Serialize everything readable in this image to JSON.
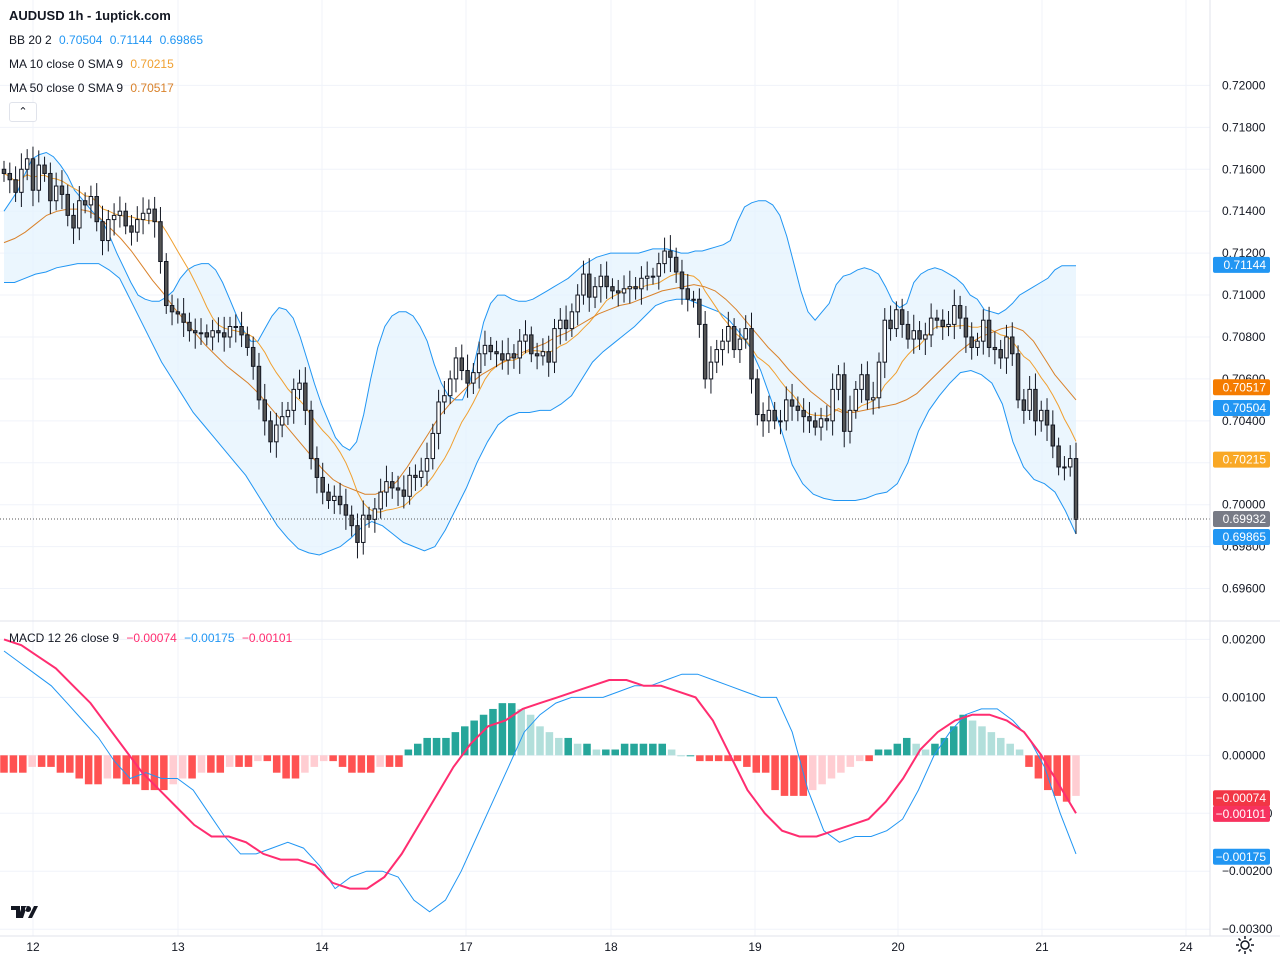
{
  "title": "AUDUSD 1h - 1uptick.com",
  "legends": {
    "bb": {
      "name": "BB 20 2",
      "mid": "0.70504",
      "upper": "0.71144",
      "lower": "0.69865"
    },
    "ma10": {
      "name": "MA 10 close 0 SMA 9",
      "value": "0.70215"
    },
    "ma50": {
      "name": "MA 50 close 0 SMA 9",
      "value": "0.70517"
    },
    "macd": {
      "name": "MACD 12 26 close 9",
      "hist": "−0.00074",
      "macd": "−0.00175",
      "signal": "−0.00101"
    }
  },
  "colors": {
    "bb_line": "#2196f3",
    "bb_fill": "#e3f2fd",
    "ma10": "#f0a030",
    "ma50": "#d9822b",
    "macd_line": "#2196f3",
    "signal_line": "#ff2d70",
    "hist_pos_strong": "#26a69a",
    "hist_pos_weak": "#b2dfdb",
    "hist_neg_strong": "#ff5252",
    "hist_neg_weak": "#ffcdd2",
    "candle_body": "#555555"
  },
  "chart_data": [
    {
      "type": "candlestick",
      "title": "AUDUSD 1h - 1uptick.com",
      "ylim": [
        0.6945,
        0.7225
      ],
      "y_ticks": [
        "0.72000",
        "0.71800",
        "0.71600",
        "0.71400",
        "0.71200",
        "0.71000",
        "0.70800",
        "0.70600",
        "0.70400",
        "0.70200",
        "0.70000",
        "0.69800",
        "0.69600"
      ],
      "x_ticks": [
        "12",
        "13",
        "14",
        "17",
        "18",
        "19",
        "20",
        "21",
        "24"
      ],
      "price_labels": [
        {
          "text": "0.71144",
          "value": 0.71144,
          "kind": "bb"
        },
        {
          "text": "0.70517",
          "value": 0.70517,
          "kind": "ma50"
        },
        {
          "text": "0.70504",
          "value": 0.70504,
          "kind": "bb"
        },
        {
          "text": "0.70215",
          "value": 0.70215,
          "kind": "ma10"
        },
        {
          "text": "0.69932",
          "value": 0.69932,
          "kind": "last"
        },
        {
          "text": "0.69865",
          "value": 0.69865,
          "kind": "bb"
        }
      ],
      "last_price": 0.69932,
      "close": [
        0.7158,
        0.7155,
        0.7149,
        0.716,
        0.7165,
        0.715,
        0.7162,
        0.7158,
        0.7145,
        0.7152,
        0.7148,
        0.7138,
        0.7132,
        0.7145,
        0.7143,
        0.7147,
        0.7135,
        0.7126,
        0.7136,
        0.7138,
        0.714,
        0.7133,
        0.713,
        0.7136,
        0.7139,
        0.7141,
        0.7135,
        0.7116,
        0.7095,
        0.7092,
        0.7091,
        0.7087,
        0.7083,
        0.7082,
        0.7082,
        0.708,
        0.7083,
        0.7082,
        0.708,
        0.7085,
        0.7085,
        0.7081,
        0.7075,
        0.7066,
        0.705,
        0.704,
        0.703,
        0.7038,
        0.7042,
        0.7045,
        0.7055,
        0.7058,
        0.7045,
        0.7022,
        0.7013,
        0.7006,
        0.7002,
        0.7004,
        0.7,
        0.6995,
        0.699,
        0.6982,
        0.6995,
        0.6993,
        0.6998,
        0.7006,
        0.7011,
        0.7008,
        0.7007,
        0.7004,
        0.7014,
        0.7013,
        0.7016,
        0.7022,
        0.7034,
        0.7049,
        0.7052,
        0.706,
        0.707,
        0.7064,
        0.7058,
        0.7063,
        0.7072,
        0.7076,
        0.7073,
        0.7072,
        0.7069,
        0.7072,
        0.707,
        0.7078,
        0.7081,
        0.7072,
        0.7071,
        0.7073,
        0.7068,
        0.7084,
        0.7088,
        0.7084,
        0.7092,
        0.71,
        0.711,
        0.7099,
        0.7104,
        0.7109,
        0.7104,
        0.7102,
        0.7101,
        0.7103,
        0.7104,
        0.7103,
        0.7108,
        0.7109,
        0.7109,
        0.7115,
        0.7121,
        0.7118,
        0.7111,
        0.7103,
        0.7098,
        0.7098,
        0.7086,
        0.706,
        0.7068,
        0.7074,
        0.7078,
        0.7085,
        0.7074,
        0.7079,
        0.7084,
        0.706,
        0.7043,
        0.704,
        0.7045,
        0.704,
        0.704,
        0.705,
        0.7047,
        0.7045,
        0.7042,
        0.704,
        0.7037,
        0.7041,
        0.704,
        0.7055,
        0.7062,
        0.7035,
        0.7045,
        0.7055,
        0.7062,
        0.705,
        0.7051,
        0.7068,
        0.7088,
        0.7084,
        0.7093,
        0.7086,
        0.7079,
        0.7083,
        0.7079,
        0.7081,
        0.7089,
        0.7088,
        0.7085,
        0.7086,
        0.7095,
        0.7089,
        0.708,
        0.7075,
        0.7078,
        0.7088,
        0.7075,
        0.7074,
        0.707,
        0.708,
        0.7072,
        0.705,
        0.7045,
        0.7055,
        0.704,
        0.7045,
        0.7038,
        0.7028,
        0.7018,
        0.7018,
        0.7022,
        0.6993
      ],
      "open": [
        0.716,
        0.7158,
        0.7155,
        0.7149,
        0.716,
        0.7165,
        0.715,
        0.7162,
        0.7158,
        0.7145,
        0.7152,
        0.7148,
        0.7138,
        0.7132,
        0.7145,
        0.7143,
        0.7147,
        0.7135,
        0.7126,
        0.7136,
        0.7138,
        0.714,
        0.7133,
        0.713,
        0.7136,
        0.7139,
        0.7141,
        0.7135,
        0.7116,
        0.7095,
        0.7092,
        0.7091,
        0.7087,
        0.7083,
        0.7082,
        0.7082,
        0.708,
        0.7083,
        0.7082,
        0.708,
        0.7085,
        0.7085,
        0.7081,
        0.7075,
        0.7066,
        0.705,
        0.704,
        0.703,
        0.7038,
        0.7042,
        0.7045,
        0.7055,
        0.7058,
        0.7045,
        0.7022,
        0.7013,
        0.7006,
        0.7002,
        0.7004,
        0.7,
        0.6995,
        0.699,
        0.6982,
        0.6995,
        0.6993,
        0.6998,
        0.7006,
        0.7011,
        0.7008,
        0.7007,
        0.7004,
        0.7014,
        0.7013,
        0.7016,
        0.7022,
        0.7034,
        0.7049,
        0.7052,
        0.706,
        0.707,
        0.7064,
        0.7058,
        0.7063,
        0.7072,
        0.7076,
        0.7073,
        0.7072,
        0.7069,
        0.7072,
        0.707,
        0.7078,
        0.7081,
        0.7072,
        0.7071,
        0.7073,
        0.7068,
        0.7084,
        0.7088,
        0.7084,
        0.7092,
        0.71,
        0.711,
        0.7099,
        0.7104,
        0.7109,
        0.7104,
        0.7102,
        0.7101,
        0.7103,
        0.7104,
        0.7103,
        0.7108,
        0.7109,
        0.7109,
        0.7115,
        0.7121,
        0.7118,
        0.7111,
        0.7103,
        0.7098,
        0.7098,
        0.7086,
        0.706,
        0.7068,
        0.7074,
        0.7078,
        0.7085,
        0.7074,
        0.7079,
        0.7084,
        0.706,
        0.7043,
        0.704,
        0.7045,
        0.704,
        0.704,
        0.705,
        0.7047,
        0.7045,
        0.7042,
        0.704,
        0.7037,
        0.7041,
        0.704,
        0.7055,
        0.7062,
        0.7035,
        0.7045,
        0.7055,
        0.7062,
        0.705,
        0.7051,
        0.7068,
        0.7088,
        0.7084,
        0.7093,
        0.7086,
        0.7079,
        0.7083,
        0.7079,
        0.7081,
        0.7089,
        0.7088,
        0.7085,
        0.7086,
        0.7095,
        0.7089,
        0.708,
        0.7075,
        0.7078,
        0.7088,
        0.7075,
        0.7074,
        0.707,
        0.708,
        0.7072,
        0.705,
        0.7045,
        0.7055,
        0.704,
        0.7045,
        0.7038,
        0.7028,
        0.7018,
        0.7018,
        0.7022
      ],
      "bb_upper": [
        0.714,
        0.7145,
        0.715,
        0.7158,
        0.7165,
        0.7167,
        0.7168,
        0.7166,
        0.7162,
        0.7157,
        0.715,
        0.7146,
        0.7142,
        0.7138,
        0.7135,
        0.7128,
        0.712,
        0.7113,
        0.7106,
        0.71,
        0.7098,
        0.7097,
        0.7097,
        0.7099,
        0.7102,
        0.7108,
        0.7112,
        0.7114,
        0.7115,
        0.7115,
        0.7112,
        0.7106,
        0.7098,
        0.709,
        0.7083,
        0.7078,
        0.7078,
        0.7084,
        0.709,
        0.7094,
        0.7093,
        0.7089,
        0.708,
        0.7069,
        0.7058,
        0.7048,
        0.704,
        0.7032,
        0.7028,
        0.7026,
        0.703,
        0.7043,
        0.706,
        0.7075,
        0.7085,
        0.709,
        0.7092,
        0.7092,
        0.709,
        0.7085,
        0.7078,
        0.7067,
        0.7058,
        0.7052,
        0.705,
        0.705,
        0.7058,
        0.7072,
        0.7087,
        0.7096,
        0.71,
        0.71,
        0.7098,
        0.7097,
        0.7097,
        0.7098,
        0.71,
        0.7102,
        0.7104,
        0.7106,
        0.7108,
        0.7111,
        0.7114,
        0.7116,
        0.7118,
        0.7119,
        0.712,
        0.712,
        0.712,
        0.712,
        0.712,
        0.7121,
        0.7122,
        0.7122,
        0.7122,
        0.7121,
        0.712,
        0.712,
        0.7121,
        0.7121,
        0.7122,
        0.7123,
        0.7124,
        0.7126,
        0.7135,
        0.7142,
        0.7144,
        0.7145,
        0.7145,
        0.7143,
        0.7138,
        0.7128,
        0.7115,
        0.7102,
        0.7092,
        0.7088,
        0.7092,
        0.7096,
        0.7105,
        0.7109,
        0.711,
        0.7112,
        0.7113,
        0.7112,
        0.711,
        0.7104,
        0.7097,
        0.7094,
        0.7096,
        0.7106,
        0.711,
        0.7112,
        0.7113,
        0.7112,
        0.711,
        0.7108,
        0.7105,
        0.71,
        0.7098,
        0.7093,
        0.7092,
        0.7091,
        0.7093,
        0.7096,
        0.71,
        0.7102,
        0.7104,
        0.7106,
        0.7108,
        0.7112,
        0.7114,
        0.7114,
        0.7114
      ],
      "bb_mid": [
        0.7125,
        0.7127,
        0.713,
        0.7134,
        0.7138,
        0.714,
        0.7141,
        0.7141,
        0.714,
        0.7137,
        0.7132,
        0.7127,
        0.7121,
        0.7114,
        0.7107,
        0.7101,
        0.7094,
        0.7088,
        0.7082,
        0.7076,
        0.7071,
        0.7066,
        0.7062,
        0.7058,
        0.7053,
        0.7047,
        0.7041,
        0.7035,
        0.7029,
        0.7023,
        0.7017,
        0.7012,
        0.7009,
        0.7007,
        0.7005,
        0.7005,
        0.7007,
        0.7011,
        0.7018,
        0.7026,
        0.7034,
        0.7042,
        0.7048,
        0.7053,
        0.7058,
        0.7062,
        0.7065,
        0.7068,
        0.7071,
        0.7073,
        0.7075,
        0.7077,
        0.708,
        0.7082,
        0.7085,
        0.7088,
        0.7091,
        0.7093,
        0.7095,
        0.7096,
        0.7098,
        0.71,
        0.7102,
        0.7103,
        0.7104,
        0.7105,
        0.7104,
        0.7102,
        0.7098,
        0.7093,
        0.7087,
        0.7081,
        0.7075,
        0.707,
        0.7064,
        0.7059,
        0.7054,
        0.705,
        0.7046,
        0.7044,
        0.7044,
        0.7045,
        0.7046,
        0.7047,
        0.7048,
        0.705,
        0.7053,
        0.7058,
        0.7063,
        0.7068,
        0.7073,
        0.7077,
        0.708,
        0.7082,
        0.7084,
        0.7085,
        0.7083,
        0.7078,
        0.707,
        0.7062,
        0.7056,
        0.705
      ],
      "bb_lower": [
        0.7106,
        0.7106,
        0.7108,
        0.711,
        0.7111,
        0.7113,
        0.7114,
        0.7115,
        0.7115,
        0.7115,
        0.7112,
        0.7108,
        0.7098,
        0.7088,
        0.7078,
        0.7068,
        0.706,
        0.7052,
        0.7044,
        0.7038,
        0.7032,
        0.7026,
        0.702,
        0.7014,
        0.7006,
        0.6998,
        0.699,
        0.6984,
        0.6979,
        0.6977,
        0.6976,
        0.6978,
        0.698,
        0.6984,
        0.6989,
        0.6992,
        0.699,
        0.6986,
        0.6982,
        0.698,
        0.6978,
        0.698,
        0.6988,
        0.6998,
        0.7008,
        0.702,
        0.703,
        0.7038,
        0.7042,
        0.7044,
        0.7044,
        0.7045,
        0.7045,
        0.7048,
        0.7052,
        0.706,
        0.7068,
        0.7073,
        0.7077,
        0.7081,
        0.7085,
        0.709,
        0.7095,
        0.7097,
        0.7098,
        0.7098,
        0.7096,
        0.7094,
        0.7092,
        0.7088,
        0.7082,
        0.7075,
        0.7064,
        0.705,
        0.7035,
        0.7019,
        0.701,
        0.7005,
        0.7003,
        0.7002,
        0.7002,
        0.7002,
        0.7003,
        0.7005,
        0.7006,
        0.701,
        0.702,
        0.7035,
        0.7045,
        0.7052,
        0.7058,
        0.7063,
        0.7064,
        0.7062,
        0.7058,
        0.7048,
        0.703,
        0.7018,
        0.7012,
        0.701,
        0.7006,
        0.6997,
        0.6986
      ]
    },
    {
      "type": "bar+line",
      "title": "MACD 12 26 close 9",
      "ylim": [
        -0.0031,
        0.0023
      ],
      "y_ticks": [
        "0.00200",
        "0.00100",
        "0.00000",
        "−0.00100",
        "−0.00200",
        "−0.00300"
      ],
      "value_labels": [
        {
          "text": "−0.00074",
          "value": -0.00074,
          "kind": "hist"
        },
        {
          "text": "−0.00101",
          "value": -0.00101,
          "kind": "signal"
        },
        {
          "text": "−0.00175",
          "value": -0.00175,
          "kind": "macd"
        }
      ],
      "macd": [
        0.0018,
        0.0016,
        0.0014,
        0.0012,
        0.0009,
        0.0006,
        0.0003,
        -0.0001,
        -0.0004,
        -0.0003,
        -0.0004,
        -0.0004,
        -0.0006,
        -0.001,
        -0.0014,
        -0.0017,
        -0.0017,
        -0.0016,
        -0.0015,
        -0.0016,
        -0.0019,
        -0.0023,
        -0.0021,
        -0.002,
        -0.002,
        -0.0021,
        -0.0025,
        -0.0027,
        -0.0025,
        -0.002,
        -0.0014,
        -0.0008,
        -0.0002,
        0.0004,
        0.0007,
        0.0009,
        0.001,
        0.001,
        0.001,
        0.0011,
        0.0012,
        0.0012,
        0.0013,
        0.0014,
        0.0014,
        0.0013,
        0.0012,
        0.0011,
        0.001,
        0.001,
        0.0004,
        -0.0006,
        -0.0013,
        -0.0015,
        -0.0014,
        -0.0014,
        -0.0013,
        -0.0011,
        -0.0006,
        0.0,
        0.0004,
        0.0007,
        0.0008,
        0.0008,
        0.0006,
        0.0003,
        -0.0002,
        -0.001,
        -0.0017
      ],
      "signal": [
        0.002,
        0.0019,
        0.0017,
        0.0015,
        0.0012,
        0.0009,
        0.0005,
        0.0001,
        -0.0003,
        -0.0006,
        -0.0009,
        -0.0012,
        -0.0014,
        -0.0014,
        -0.0015,
        -0.0017,
        -0.0018,
        -0.0018,
        -0.0019,
        -0.0022,
        -0.0023,
        -0.0023,
        -0.0021,
        -0.0017,
        -0.0012,
        -0.0007,
        -0.0002,
        0.0002,
        0.0005,
        0.0006,
        0.0008,
        0.0009,
        0.001,
        0.0011,
        0.0012,
        0.0013,
        0.0013,
        0.0012,
        0.0012,
        0.0011,
        0.001,
        0.0006,
        0.0,
        -0.0006,
        -0.001,
        -0.0013,
        -0.0014,
        -0.0014,
        -0.0013,
        -0.0012,
        -0.0011,
        -0.0008,
        -0.0004,
        0.0001,
        0.0004,
        0.0006,
        0.0007,
        0.0007,
        0.0006,
        0.0004,
        0.0,
        -0.0005,
        -0.001
      ],
      "hist": [
        -0.0003,
        -0.0003,
        -0.0003,
        -0.0002,
        -0.0002,
        -0.0002,
        -0.0003,
        -0.0003,
        -0.0004,
        -0.0005,
        -0.0005,
        -0.0004,
        -0.0004,
        -0.0005,
        -0.0005,
        -0.0006,
        -0.0006,
        -0.0006,
        -0.0005,
        -0.0004,
        -0.0004,
        -0.0003,
        -0.0003,
        -0.0003,
        -0.0002,
        -0.0002,
        -0.0002,
        -0.0001,
        -0.0001,
        -0.0003,
        -0.0004,
        -0.0004,
        -0.0003,
        -0.0002,
        -0.0001,
        -0.0001,
        -0.0002,
        -0.0003,
        -0.0003,
        -0.0003,
        -0.0002,
        -0.0002,
        -0.0002,
        0.0001,
        0.0002,
        0.0003,
        0.0003,
        0.0003,
        0.0004,
        0.0005,
        0.0006,
        0.0007,
        0.0008,
        0.0009,
        0.0009,
        0.0008,
        0.0007,
        0.0005,
        0.0004,
        0.0003,
        0.0003,
        0.0002,
        0.0002,
        0.0001,
        0.0001,
        0.0001,
        0.0002,
        0.0002,
        0.0002,
        0.0002,
        0.0002,
        0.0001,
        0.0,
        0.0,
        -0.0001,
        -0.0001,
        -0.0001,
        -0.0001,
        -0.0001,
        -0.0002,
        -0.0003,
        -0.0003,
        -0.0006,
        -0.0007,
        -0.0007,
        -0.0007,
        -0.0006,
        -0.0005,
        -0.0004,
        -0.0003,
        -0.0002,
        -0.0001,
        -0.0001,
        0.0001,
        0.0001,
        0.0002,
        0.0003,
        0.0002,
        0.0001,
        0.0002,
        0.0003,
        0.0005,
        0.0007,
        0.0006,
        0.0005,
        0.0004,
        0.0003,
        0.0002,
        0.0001,
        -0.0002,
        -0.0004,
        -0.0006,
        -0.0007,
        -0.0008,
        -0.0007
      ]
    }
  ]
}
